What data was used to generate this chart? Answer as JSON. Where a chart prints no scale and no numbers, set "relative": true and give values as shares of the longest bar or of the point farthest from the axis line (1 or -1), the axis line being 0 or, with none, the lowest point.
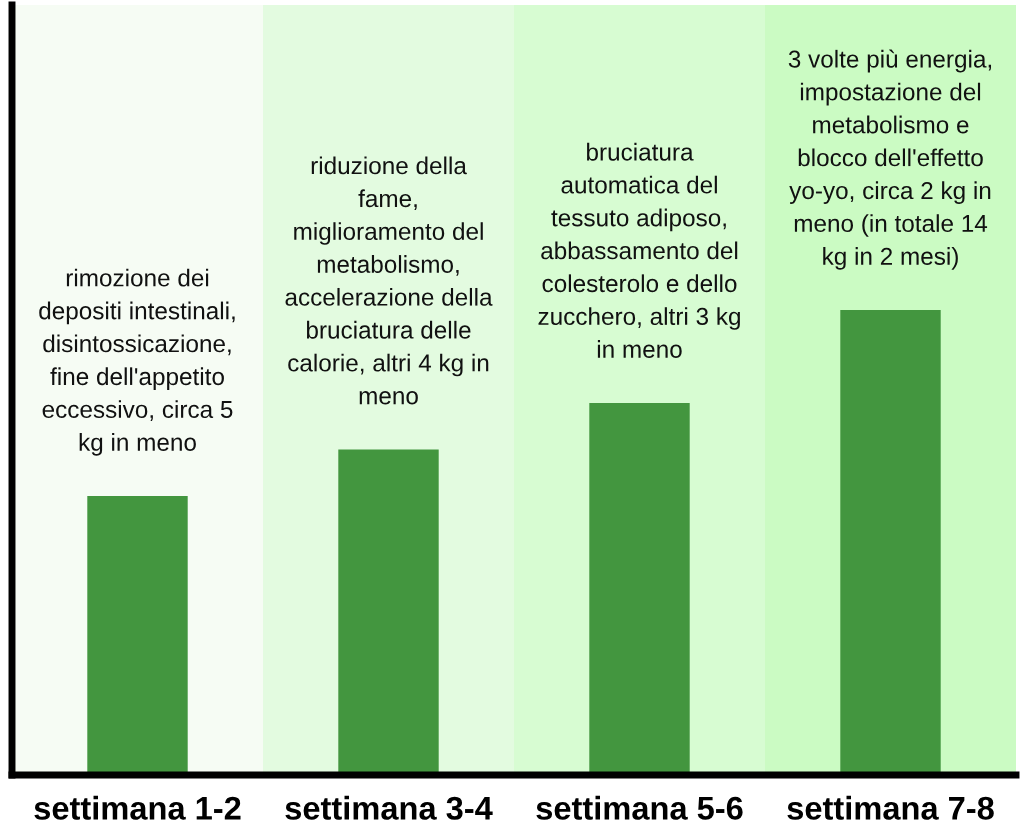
{
  "chart_data": {
    "type": "bar",
    "relative": true,
    "categories": [
      "settimana 1-2",
      "settimana 3-4",
      "settimana 5-6",
      "settimana 7-8"
    ],
    "values": [
      0.6,
      0.7,
      0.8,
      1
    ],
    "color": "#43963f",
    "bands": [
      {
        "axis": "x",
        "from": "settimana 1-2",
        "to": "settimana 1-2",
        "color": "#f6fcf4"
      },
      {
        "axis": "x",
        "from": "settimana 3-4",
        "to": "settimana 3-4",
        "color": "#e3fbe0"
      },
      {
        "axis": "x",
        "from": "settimana 5-6",
        "to": "settimana 5-6",
        "color": "#d7fcd2"
      },
      {
        "axis": "x",
        "from": "settimana 7-8",
        "to": "settimana 7-8",
        "color": "#cbfbc3"
      }
    ],
    "annotations": [
      "rimozione dei\ndepositi intestinali,\ndisintossicazione,\nfine dell'appetito\neccessivo, circa 5\nkg in meno",
      "riduzione della\nfame,\nmiglioramento del\nmetabolismo,\naccelerazione della\nbruciatura delle\ncalorie, altri 4 kg in\nmeno",
      "bruciatura\nautomatica del\ntessuto adiposo,\nabbassamento del\ncolesterolo e dello\nzucchero, altri 3 kg\nin meno",
      "3 volte più energia,\nimpostazione del\nmetabolismo e\nblocco dell'effetto\nyo-yo, circa 2 kg in\nmeno (in totale 14\nkg in 2 mesi)"
    ]
  }
}
